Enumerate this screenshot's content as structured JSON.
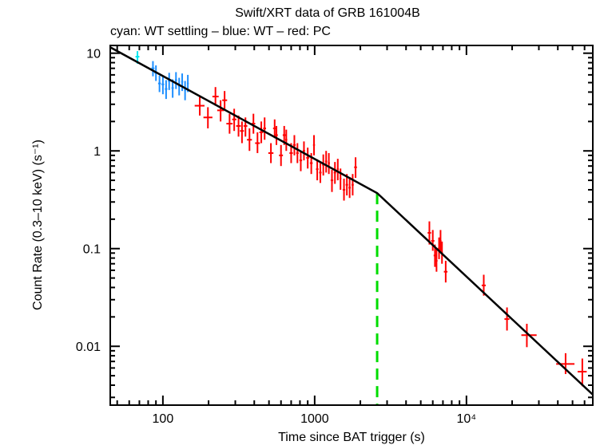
{
  "chart_data": {
    "type": "scatter",
    "title": "Swift/XRT data of GRB 161004B",
    "subtitle": "cyan: WT settling – blue: WT – red: PC",
    "xlabel": "Time since BAT trigger (s)",
    "ylabel": "Count Rate (0.3–10 keV) (s⁻¹)",
    "xscale": "log",
    "yscale": "log",
    "xlim": [
      45,
      68000
    ],
    "ylim": [
      0.0025,
      12
    ],
    "x_ticks": [
      {
        "value": 100,
        "label": "100"
      },
      {
        "value": 1000,
        "label": "1000"
      },
      {
        "value": 10000,
        "label": "10⁴"
      }
    ],
    "y_ticks": [
      {
        "value": 10,
        "label": "10"
      },
      {
        "value": 1,
        "label": "1"
      },
      {
        "value": 0.1,
        "label": "0.1"
      },
      {
        "value": 0.01,
        "label": "0.01"
      }
    ],
    "grid": false,
    "series": [
      {
        "name": "WT settling",
        "color": "#00e5ee",
        "points": [
          {
            "x": 68,
            "y": 9.2,
            "xerr": [
              66,
              70
            ],
            "yerr": [
              7.8,
              10.5
            ]
          }
        ]
      },
      {
        "name": "WT",
        "color": "#1e8fff",
        "points": [
          {
            "x": 86,
            "y": 7.0,
            "xerr": [
              84,
              88
            ],
            "yerr": [
              5.8,
              8.3
            ]
          },
          {
            "x": 90,
            "y": 6.3,
            "xerr": [
              88,
              92
            ],
            "yerr": [
              5.2,
              7.5
            ]
          },
          {
            "x": 95,
            "y": 4.9,
            "xerr": [
              93,
              97
            ],
            "yerr": [
              4.0,
              5.9
            ]
          },
          {
            "x": 100,
            "y": 4.8,
            "xerr": [
              98,
              102
            ],
            "yerr": [
              3.8,
              5.8
            ]
          },
          {
            "x": 105,
            "y": 4.3,
            "xerr": [
              103,
              107
            ],
            "yerr": [
              3.4,
              5.3
            ]
          },
          {
            "x": 110,
            "y": 5.2,
            "xerr": [
              108,
              112
            ],
            "yerr": [
              4.2,
              6.3
            ]
          },
          {
            "x": 116,
            "y": 4.4,
            "xerr": [
              114,
              118
            ],
            "yerr": [
              3.5,
              5.4
            ]
          },
          {
            "x": 122,
            "y": 5.3,
            "xerr": [
              120,
              124
            ],
            "yerr": [
              4.3,
              6.4
            ]
          },
          {
            "x": 128,
            "y": 4.6,
            "xerr": [
              126,
              130
            ],
            "yerr": [
              3.7,
              5.6
            ]
          },
          {
            "x": 134,
            "y": 5.1,
            "xerr": [
              132,
              136
            ],
            "yerr": [
              4.1,
              6.2
            ]
          },
          {
            "x": 140,
            "y": 4.2,
            "xerr": [
              138,
              142
            ],
            "yerr": [
              3.3,
              5.2
            ]
          },
          {
            "x": 146,
            "y": 4.9,
            "xerr": [
              144,
              148
            ],
            "yerr": [
              4.0,
              6.0
            ]
          }
        ]
      },
      {
        "name": "PC",
        "color": "#ff0000",
        "points": [
          {
            "x": 175,
            "y": 2.9,
            "xerr": [
              162,
              188
            ],
            "yerr": [
              2.3,
              3.6
            ]
          },
          {
            "x": 198,
            "y": 2.2,
            "xerr": [
              185,
              212
            ],
            "yerr": [
              1.7,
              2.8
            ]
          },
          {
            "x": 222,
            "y": 3.6,
            "xerr": [
              212,
              233
            ],
            "yerr": [
              2.9,
              4.5
            ]
          },
          {
            "x": 240,
            "y": 2.6,
            "xerr": [
              228,
              253
            ],
            "yerr": [
              2.0,
              3.3
            ]
          },
          {
            "x": 255,
            "y": 3.3,
            "xerr": [
              246,
              265
            ],
            "yerr": [
              2.6,
              4.1
            ]
          },
          {
            "x": 275,
            "y": 1.9,
            "xerr": [
              262,
              288
            ],
            "yerr": [
              1.5,
              2.4
            ]
          },
          {
            "x": 295,
            "y": 2.1,
            "xerr": [
              286,
              305
            ],
            "yerr": [
              1.6,
              2.7
            ]
          },
          {
            "x": 315,
            "y": 1.8,
            "xerr": [
              304,
              326
            ],
            "yerr": [
              1.4,
              2.3
            ]
          },
          {
            "x": 332,
            "y": 1.6,
            "xerr": [
              322,
              342
            ],
            "yerr": [
              1.2,
              2.0
            ]
          },
          {
            "x": 350,
            "y": 1.8,
            "xerr": [
              340,
              360
            ],
            "yerr": [
              1.4,
              2.2
            ]
          },
          {
            "x": 372,
            "y": 1.3,
            "xerr": [
              358,
              386
            ],
            "yerr": [
              1.0,
              1.7
            ]
          },
          {
            "x": 395,
            "y": 1.9,
            "xerr": [
              384,
              406
            ],
            "yerr": [
              1.5,
              2.4
            ]
          },
          {
            "x": 420,
            "y": 1.2,
            "xerr": [
              405,
              436
            ],
            "yerr": [
              0.95,
              1.55
            ]
          },
          {
            "x": 445,
            "y": 1.55,
            "xerr": [
              432,
              458
            ],
            "yerr": [
              1.2,
              2.0
            ]
          },
          {
            "x": 468,
            "y": 1.7,
            "xerr": [
              458,
              478
            ],
            "yerr": [
              1.3,
              2.2
            ]
          },
          {
            "x": 515,
            "y": 0.95,
            "xerr": [
              495,
              535
            ],
            "yerr": [
              0.75,
              1.2
            ]
          },
          {
            "x": 545,
            "y": 1.7,
            "xerr": [
              532,
              558
            ],
            "yerr": [
              1.35,
              2.1
            ]
          },
          {
            "x": 560,
            "y": 1.45,
            "xerr": [
              548,
              572
            ],
            "yerr": [
              1.15,
              1.8
            ]
          },
          {
            "x": 600,
            "y": 0.9,
            "xerr": [
              582,
              618
            ],
            "yerr": [
              0.7,
              1.15
            ]
          },
          {
            "x": 630,
            "y": 1.45,
            "xerr": [
              616,
              644
            ],
            "yerr": [
              1.15,
              1.8
            ]
          },
          {
            "x": 650,
            "y": 1.3,
            "xerr": [
              640,
              660
            ],
            "yerr": [
              1.0,
              1.65
            ]
          },
          {
            "x": 700,
            "y": 0.95,
            "xerr": [
              682,
              718
            ],
            "yerr": [
              0.75,
              1.2
            ]
          },
          {
            "x": 735,
            "y": 1.15,
            "xerr": [
              720,
              750
            ],
            "yerr": [
              0.9,
              1.45
            ]
          },
          {
            "x": 770,
            "y": 0.95,
            "xerr": [
              755,
              785
            ],
            "yerr": [
              0.75,
              1.2
            ]
          },
          {
            "x": 810,
            "y": 0.8,
            "xerr": [
              794,
              826
            ],
            "yerr": [
              0.62,
              1.0
            ]
          },
          {
            "x": 850,
            "y": 1.0,
            "xerr": [
              835,
              865
            ],
            "yerr": [
              0.8,
              1.25
            ]
          },
          {
            "x": 900,
            "y": 0.85,
            "xerr": [
              880,
              920
            ],
            "yerr": [
              0.66,
              1.08
            ]
          },
          {
            "x": 950,
            "y": 0.75,
            "xerr": [
              930,
              970
            ],
            "yerr": [
              0.58,
              0.95
            ]
          },
          {
            "x": 990,
            "y": 1.15,
            "xerr": [
              975,
              1005
            ],
            "yerr": [
              0.9,
              1.45
            ]
          },
          {
            "x": 1040,
            "y": 0.65,
            "xerr": [
              1020,
              1060
            ],
            "yerr": [
              0.5,
              0.82
            ]
          },
          {
            "x": 1090,
            "y": 0.6,
            "xerr": [
              1070,
              1110
            ],
            "yerr": [
              0.47,
              0.76
            ]
          },
          {
            "x": 1140,
            "y": 0.72,
            "xerr": [
              1120,
              1160
            ],
            "yerr": [
              0.56,
              0.92
            ]
          },
          {
            "x": 1190,
            "y": 0.78,
            "xerr": [
              1170,
              1210
            ],
            "yerr": [
              0.6,
              1.0
            ]
          },
          {
            "x": 1240,
            "y": 0.75,
            "xerr": [
              1220,
              1260
            ],
            "yerr": [
              0.58,
              0.95
            ]
          },
          {
            "x": 1300,
            "y": 0.5,
            "xerr": [
              1275,
              1325
            ],
            "yerr": [
              0.38,
              0.64
            ]
          },
          {
            "x": 1360,
            "y": 0.6,
            "xerr": [
              1335,
              1385
            ],
            "yerr": [
              0.46,
              0.77
            ]
          },
          {
            "x": 1420,
            "y": 0.65,
            "xerr": [
              1400,
              1440
            ],
            "yerr": [
              0.5,
              0.83
            ]
          },
          {
            "x": 1480,
            "y": 0.52,
            "xerr": [
              1460,
              1500
            ],
            "yerr": [
              0.4,
              0.66
            ]
          },
          {
            "x": 1560,
            "y": 0.4,
            "xerr": [
              1530,
              1590
            ],
            "yerr": [
              0.31,
              0.52
            ]
          },
          {
            "x": 1630,
            "y": 0.45,
            "xerr": [
              1600,
              1660
            ],
            "yerr": [
              0.35,
              0.58
            ]
          },
          {
            "x": 1700,
            "y": 0.42,
            "xerr": [
              1670,
              1730
            ],
            "yerr": [
              0.33,
              0.54
            ]
          },
          {
            "x": 1780,
            "y": 0.45,
            "xerr": [
              1750,
              1810
            ],
            "yerr": [
              0.35,
              0.58
            ]
          },
          {
            "x": 1860,
            "y": 0.68,
            "xerr": [
              1820,
              1900
            ],
            "yerr": [
              0.53,
              0.86
            ]
          },
          {
            "x": 5700,
            "y": 0.145,
            "xerr": [
              5550,
              5850
            ],
            "yerr": [
              0.11,
              0.19
            ]
          },
          {
            "x": 6000,
            "y": 0.12,
            "xerr": [
              5850,
              6150
            ],
            "yerr": [
              0.095,
              0.155
            ]
          },
          {
            "x": 6200,
            "y": 0.085,
            "xerr": [
              6080,
              6320
            ],
            "yerr": [
              0.065,
              0.11
            ]
          },
          {
            "x": 6350,
            "y": 0.075,
            "xerr": [
              6250,
              6450
            ],
            "yerr": [
              0.058,
              0.098
            ]
          },
          {
            "x": 6600,
            "y": 0.1,
            "xerr": [
              6480,
              6720
            ],
            "yerr": [
              0.078,
              0.13
            ]
          },
          {
            "x": 6750,
            "y": 0.12,
            "xerr": [
              6650,
              6850
            ],
            "yerr": [
              0.093,
              0.155
            ]
          },
          {
            "x": 6900,
            "y": 0.09,
            "xerr": [
              6800,
              7000
            ],
            "yerr": [
              0.07,
              0.118
            ]
          },
          {
            "x": 7300,
            "y": 0.058,
            "xerr": [
              7100,
              7500
            ],
            "yerr": [
              0.045,
              0.075
            ]
          },
          {
            "x": 13000,
            "y": 0.042,
            "xerr": [
              12600,
              13400
            ],
            "yerr": [
              0.033,
              0.054
            ]
          },
          {
            "x": 18500,
            "y": 0.019,
            "xerr": [
              17800,
              19200
            ],
            "yerr": [
              0.0145,
              0.025
            ]
          },
          {
            "x": 25000,
            "y": 0.013,
            "xerr": [
              23000,
              29000
            ],
            "yerr": [
              0.0098,
              0.017
            ]
          },
          {
            "x": 45000,
            "y": 0.0066,
            "xerr": [
              39000,
              51500
            ],
            "yerr": [
              0.0052,
              0.0085
            ]
          },
          {
            "x": 58000,
            "y": 0.0055,
            "xerr": [
              54000,
              62000
            ],
            "yerr": [
              0.0039,
              0.0075
            ]
          }
        ]
      }
    ],
    "model": {
      "name": "broken power-law fit",
      "color": "#000000",
      "points": [
        {
          "x": 45,
          "y": 11.5
        },
        {
          "x": 2580,
          "y": 0.37
        },
        {
          "x": 68000,
          "y": 0.0032
        }
      ]
    },
    "break_marker": {
      "x": 2580,
      "color": "#00dd00",
      "style": "dashed"
    }
  }
}
